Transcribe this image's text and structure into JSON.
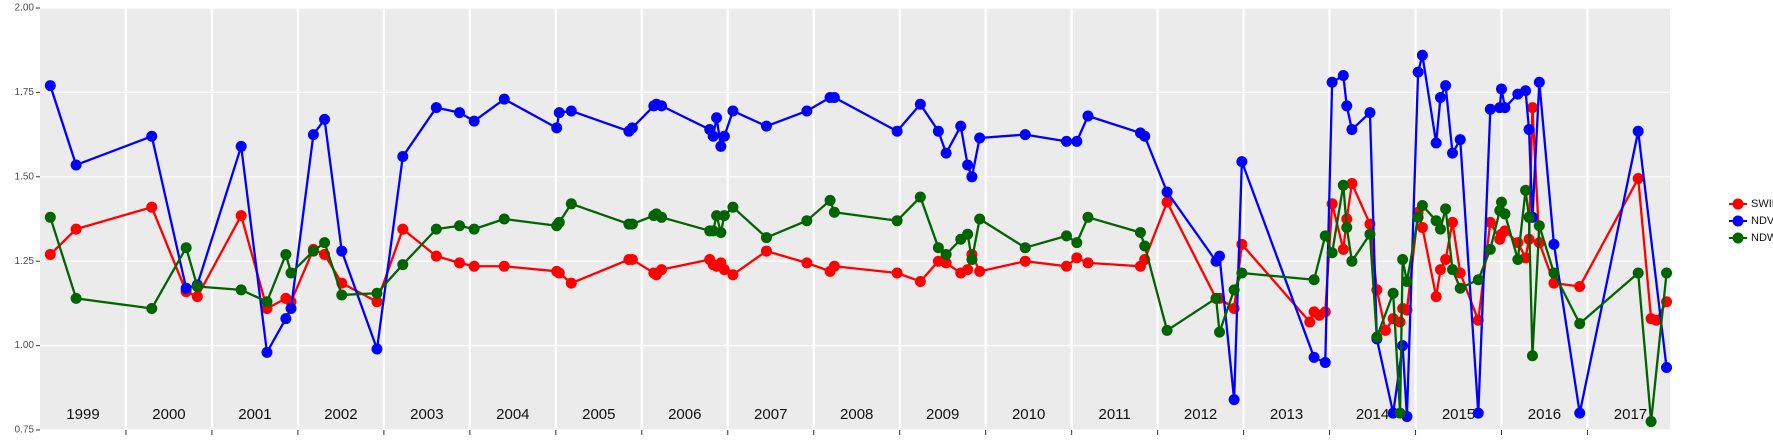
{
  "chart_data": {
    "type": "line",
    "xlim": [
      1999,
      2017.96
    ],
    "ylim": [
      0.75,
      2.0
    ],
    "yticks": [
      0.75,
      {
        "value": 1.0,
        "label": "1.00"
      },
      1.25,
      {
        "value": 1.5,
        "label": "1.50"
      },
      1.75,
      {
        "value": 2.0,
        "label": "2.00"
      }
    ],
    "xticks": [
      {
        "value": 1999.5,
        "label": "1999"
      },
      {
        "value": 2000.5,
        "label": "2000"
      },
      {
        "value": 2001.5,
        "label": "2001"
      },
      {
        "value": 2002.5,
        "label": "2002"
      },
      {
        "value": 2003.5,
        "label": "2003"
      },
      {
        "value": 2004.5,
        "label": "2004"
      },
      {
        "value": 2005.5,
        "label": "2005"
      },
      {
        "value": 2006.5,
        "label": "2006"
      },
      {
        "value": 2007.5,
        "label": "2007"
      },
      {
        "value": 2008.5,
        "label": "2008"
      },
      {
        "value": 2009.5,
        "label": "2009"
      },
      {
        "value": 2010.5,
        "label": "2010"
      },
      {
        "value": 2011.5,
        "label": "2011"
      },
      {
        "value": 2012.5,
        "label": "2012"
      },
      {
        "value": 2013.5,
        "label": "2013"
      },
      {
        "value": 2014.5,
        "label": "2014"
      },
      {
        "value": 2015.5,
        "label": "2015"
      },
      {
        "value": 2016.5,
        "label": "2016"
      },
      {
        "value": 2017.5,
        "label": "2017"
      }
    ],
    "xgrid": [
      2000,
      2001,
      2002,
      2003,
      2004,
      2005,
      2006,
      2007,
      2008,
      2009,
      2010,
      2011,
      2012,
      2013,
      2014,
      2015,
      2016,
      2017
    ],
    "grid": true,
    "legend": "right",
    "series": [
      {
        "name": "SWIR",
        "color": "#ff0000",
        "x": [
          1999.12,
          1999.42,
          2000.3,
          2000.7,
          2000.83,
          2001.34,
          2001.64,
          2001.86,
          2001.92,
          2002.18,
          2002.31,
          2002.51,
          2002.92,
          2003.22,
          2003.61,
          2003.88,
          2004.05,
          2004.4,
          2005.01,
          2005.04,
          2005.18,
          2005.85,
          2005.89,
          2006.14,
          2006.17,
          2006.23,
          2006.79,
          2006.83,
          2006.87,
          2006.92,
          2006.96,
          2007.06,
          2007.45,
          2007.92,
          2008.19,
          2008.24,
          2008.97,
          2009.24,
          2009.45,
          2009.54,
          2009.71,
          2009.79,
          2009.84,
          2009.93,
          2010.46,
          2010.94,
          2011.06,
          2011.19,
          2011.8,
          2011.85,
          2012.11,
          2012.68,
          2012.72,
          2012.89,
          2012.98,
          2013.77,
          2013.82,
          2013.88,
          2013.95,
          2014.03,
          2014.16,
          2014.2,
          2014.26,
          2014.47,
          2014.55,
          2014.65,
          2014.74,
          2014.82,
          2014.85,
          2014.9,
          2015.03,
          2015.08,
          2015.24,
          2015.29,
          2015.35,
          2015.43,
          2015.52,
          2015.73,
          2015.87,
          2015.98,
          2016.0,
          2016.04,
          2016.19,
          2016.28,
          2016.32,
          2016.36,
          2016.44,
          2016.61,
          2016.91,
          2017.59,
          2017.74,
          2017.8,
          2017.92
        ],
        "values": [
          1.27,
          1.345,
          1.41,
          1.16,
          1.145,
          1.385,
          1.11,
          1.14,
          1.13,
          1.285,
          1.27,
          1.185,
          1.13,
          1.345,
          1.265,
          1.245,
          1.235,
          1.235,
          1.22,
          1.215,
          1.185,
          1.255,
          1.255,
          1.215,
          1.21,
          1.225,
          1.255,
          1.24,
          1.235,
          1.245,
          1.225,
          1.21,
          1.28,
          1.245,
          1.22,
          1.235,
          1.215,
          1.19,
          1.25,
          1.245,
          1.215,
          1.225,
          1.27,
          1.22,
          1.25,
          1.235,
          1.26,
          1.245,
          1.235,
          1.255,
          1.425,
          1.14,
          1.14,
          1.11,
          1.3,
          1.07,
          1.1,
          1.09,
          1.1,
          1.42,
          1.285,
          1.375,
          1.48,
          1.36,
          1.165,
          1.045,
          1.08,
          1.07,
          1.11,
          1.105,
          1.395,
          1.35,
          1.145,
          1.225,
          1.255,
          1.365,
          1.215,
          1.075,
          1.365,
          1.315,
          1.33,
          1.34,
          1.305,
          1.26,
          1.315,
          1.705,
          1.305,
          1.185,
          1.175,
          1.495,
          1.08,
          1.075,
          1.13
        ]
      },
      {
        "name": "NDVI",
        "color": "#0000ff",
        "x": [
          1999.12,
          1999.42,
          2000.3,
          2000.7,
          2000.83,
          2001.34,
          2001.64,
          2001.86,
          2001.92,
          2002.18,
          2002.31,
          2002.51,
          2002.92,
          2003.22,
          2003.61,
          2003.88,
          2004.05,
          2004.4,
          2005.01,
          2005.04,
          2005.18,
          2005.85,
          2005.89,
          2006.14,
          2006.17,
          2006.23,
          2006.79,
          2006.83,
          2006.87,
          2006.92,
          2006.96,
          2007.06,
          2007.45,
          2007.92,
          2008.19,
          2008.24,
          2008.97,
          2009.24,
          2009.45,
          2009.54,
          2009.71,
          2009.79,
          2009.84,
          2009.93,
          2010.46,
          2010.94,
          2011.06,
          2011.19,
          2011.8,
          2011.85,
          2012.11,
          2012.68,
          2012.72,
          2012.89,
          2012.98,
          2013.82,
          2013.95,
          2014.03,
          2014.16,
          2014.2,
          2014.26,
          2014.47,
          2014.55,
          2014.74,
          2014.85,
          2014.9,
          2015.03,
          2015.08,
          2015.24,
          2015.29,
          2015.35,
          2015.43,
          2015.52,
          2015.73,
          2015.87,
          2015.98,
          2016.0,
          2016.04,
          2016.19,
          2016.28,
          2016.32,
          2016.36,
          2016.44,
          2016.61,
          2016.91,
          2017.59,
          2017.92
        ],
        "values": [
          1.77,
          1.535,
          1.62,
          1.17,
          1.18,
          1.59,
          0.98,
          1.08,
          1.11,
          1.625,
          1.67,
          1.28,
          0.99,
          1.56,
          1.705,
          1.69,
          1.665,
          1.73,
          1.645,
          1.69,
          1.695,
          1.635,
          1.645,
          1.71,
          1.715,
          1.71,
          1.64,
          1.62,
          1.675,
          1.59,
          1.62,
          1.695,
          1.65,
          1.695,
          1.735,
          1.735,
          1.635,
          1.715,
          1.635,
          1.57,
          1.65,
          1.535,
          1.5,
          1.615,
          1.625,
          1.605,
          1.605,
          1.68,
          1.63,
          1.62,
          1.455,
          1.25,
          1.265,
          0.84,
          1.545,
          0.965,
          0.95,
          1.78,
          1.8,
          1.71,
          1.64,
          1.69,
          1.02,
          0.8,
          1.0,
          0.79,
          1.81,
          1.86,
          1.6,
          1.735,
          1.77,
          1.57,
          1.61,
          0.8,
          1.7,
          1.705,
          1.76,
          1.705,
          1.745,
          1.755,
          1.64,
          1.38,
          1.78,
          1.3,
          0.8,
          1.635,
          0.935
        ]
      },
      {
        "name": "NDWI",
        "color": "#006400",
        "x": [
          1999.12,
          1999.42,
          2000.3,
          2000.7,
          2000.83,
          2001.34,
          2001.64,
          2001.86,
          2001.92,
          2002.18,
          2002.31,
          2002.51,
          2002.92,
          2003.22,
          2003.61,
          2003.88,
          2004.05,
          2004.4,
          2005.01,
          2005.04,
          2005.18,
          2005.85,
          2005.89,
          2006.14,
          2006.17,
          2006.23,
          2006.79,
          2006.83,
          2006.87,
          2006.92,
          2006.96,
          2007.06,
          2007.45,
          2007.92,
          2008.19,
          2008.24,
          2008.97,
          2009.24,
          2009.45,
          2009.54,
          2009.71,
          2009.79,
          2009.84,
          2009.93,
          2010.46,
          2010.94,
          2011.06,
          2011.19,
          2011.8,
          2011.85,
          2012.11,
          2012.68,
          2012.72,
          2012.89,
          2012.98,
          2013.82,
          2013.95,
          2014.03,
          2014.16,
          2014.2,
          2014.26,
          2014.47,
          2014.55,
          2014.74,
          2014.82,
          2014.85,
          2014.9,
          2015.03,
          2015.08,
          2015.24,
          2015.29,
          2015.35,
          2015.43,
          2015.52,
          2015.73,
          2015.87,
          2015.98,
          2016.0,
          2016.04,
          2016.19,
          2016.28,
          2016.32,
          2016.36,
          2016.44,
          2016.61,
          2016.91,
          2017.59,
          2017.74,
          2017.92
        ],
        "values": [
          1.38,
          1.14,
          1.11,
          1.29,
          1.175,
          1.165,
          1.13,
          1.27,
          1.215,
          1.28,
          1.305,
          1.15,
          1.155,
          1.24,
          1.345,
          1.355,
          1.345,
          1.375,
          1.355,
          1.365,
          1.42,
          1.36,
          1.36,
          1.385,
          1.39,
          1.38,
          1.34,
          1.34,
          1.385,
          1.335,
          1.385,
          1.41,
          1.32,
          1.37,
          1.43,
          1.395,
          1.37,
          1.44,
          1.29,
          1.27,
          1.315,
          1.33,
          1.255,
          1.375,
          1.29,
          1.325,
          1.305,
          1.38,
          1.335,
          1.295,
          1.045,
          1.14,
          1.04,
          1.165,
          1.215,
          1.195,
          1.325,
          1.275,
          1.475,
          1.35,
          1.25,
          1.33,
          1.025,
          1.155,
          0.8,
          1.255,
          1.19,
          1.38,
          1.415,
          1.37,
          1.345,
          1.405,
          1.225,
          1.17,
          1.195,
          1.285,
          1.4,
          1.425,
          1.39,
          1.255,
          1.46,
          1.38,
          0.97,
          1.355,
          1.215,
          1.065,
          1.215,
          0.775,
          1.215
        ]
      }
    ]
  }
}
